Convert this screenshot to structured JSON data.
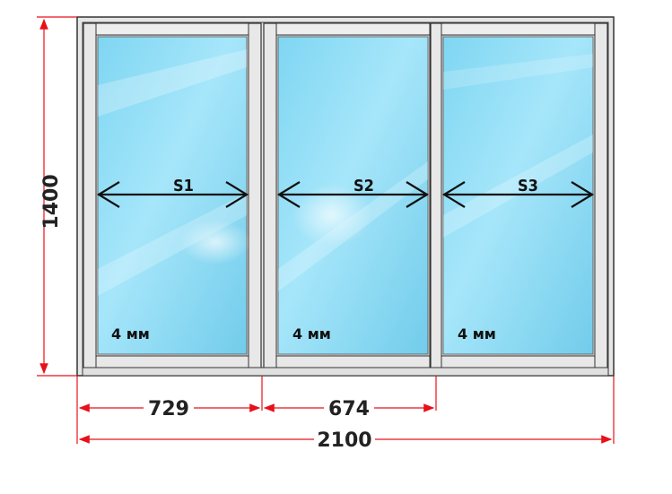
{
  "dimensions": {
    "height": "1400",
    "total_width": "2100",
    "section_1_width": "729",
    "section_2_width": "674"
  },
  "panels": [
    {
      "label": "S1",
      "glass": "4 мм"
    },
    {
      "label": "S2",
      "glass": "4 мм"
    },
    {
      "label": "S3",
      "glass": "4 мм"
    }
  ],
  "colors": {
    "dimension_line": "#e8101a",
    "frame_fill": "#e6e6e6",
    "frame_stroke": "#333333",
    "glass_light": "#d8f6ff",
    "glass_dark": "#6fd0ee",
    "arrow": "#111111"
  }
}
